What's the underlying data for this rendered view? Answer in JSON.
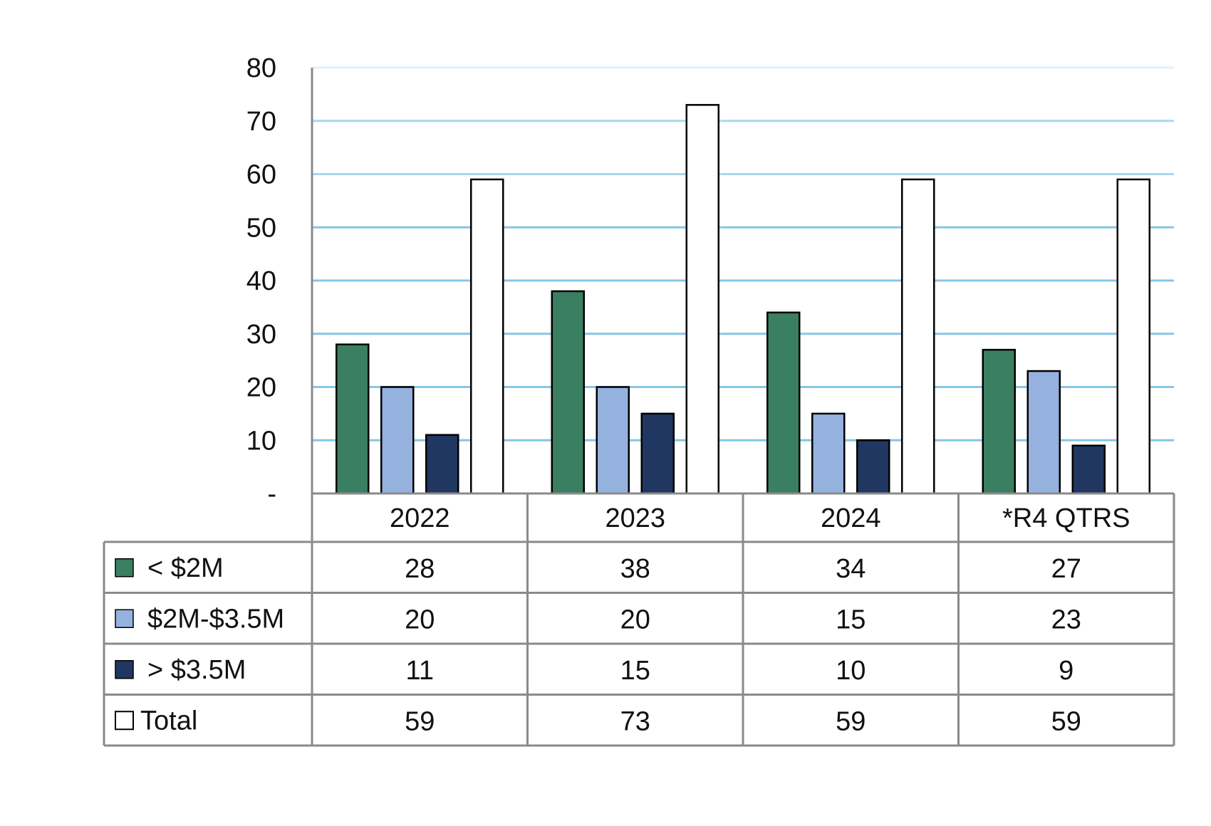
{
  "chart_data": {
    "type": "bar",
    "categories": [
      "2022",
      "2023",
      "2024",
      "*R4 QTRS"
    ],
    "series": [
      {
        "name": "< $2M",
        "values": [
          28,
          38,
          34,
          27
        ],
        "color": "#3a7f62",
        "legend_marker": "square"
      },
      {
        "name": "$2M-$3.5M",
        "values": [
          20,
          20,
          15,
          23
        ],
        "color": "#95b2df",
        "legend_marker": "square"
      },
      {
        "name": "> $3.5M",
        "values": [
          11,
          15,
          10,
          9
        ],
        "color": "#1f3761",
        "legend_marker": "square"
      },
      {
        "name": "Total",
        "values": [
          59,
          73,
          59,
          59
        ],
        "color": "#ffffff",
        "legend_marker": "open-square"
      }
    ],
    "ylim": [
      0,
      80
    ],
    "yticks": [
      0,
      10,
      20,
      30,
      40,
      50,
      60,
      70,
      80
    ],
    "ytick_labels": [
      "-",
      "10",
      "20",
      "30",
      "40",
      "50",
      "60",
      "70",
      "80"
    ],
    "grid": true,
    "grid_color": "#86c6e6",
    "legend_placement": "data table below chart",
    "data_table": true,
    "title": "",
    "xlabel": "",
    "ylabel": ""
  }
}
